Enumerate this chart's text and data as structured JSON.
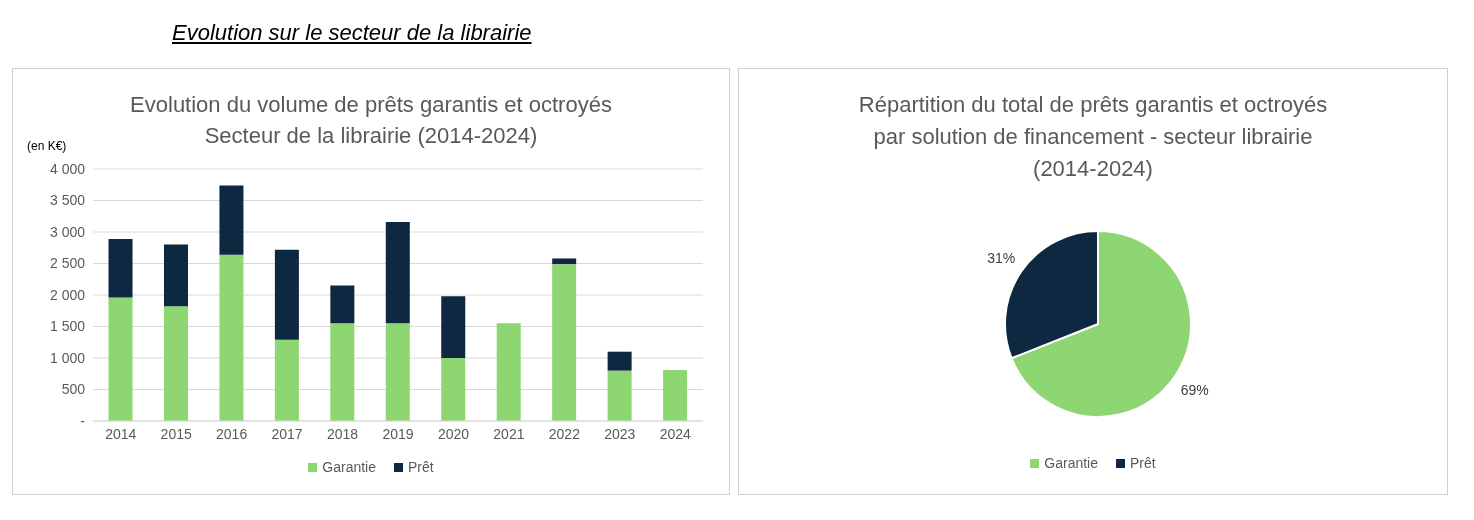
{
  "chart_data": [
    {
      "type": "bar",
      "title": "Evolution du volume de prêts garantis et octroyés",
      "subtitle": "Secteur de la librairie (2014-2024)",
      "ylabel": "(en K€)",
      "annotations": [
        "Evolution sur le secteur de la librairie"
      ],
      "stacked": true,
      "categories": [
        "2014",
        "2015",
        "2016",
        "2017",
        "2018",
        "2019",
        "2020",
        "2021",
        "2022",
        "2023",
        "2024"
      ],
      "series": [
        {
          "name": "Garantie",
          "color": "#8ed672",
          "values": [
            1960,
            1820,
            2640,
            1290,
            1550,
            1550,
            1000,
            1550,
            2490,
            800,
            810
          ]
        },
        {
          "name": "Prêt",
          "color": "#0e2841",
          "values": [
            930,
            980,
            1100,
            1430,
            600,
            1610,
            980,
            0,
            90,
            300,
            0
          ]
        }
      ],
      "ylim": [
        0,
        4000
      ],
      "yticks": [
        {
          "value": 0,
          "label": "-"
        },
        500,
        {
          "value": 1000,
          "label": "1 000"
        },
        {
          "value": 1500,
          "label": "1 500"
        },
        {
          "value": 2000,
          "label": "2 000"
        },
        {
          "value": 2500,
          "label": "2 500"
        },
        {
          "value": 3000,
          "label": "3 000"
        },
        {
          "value": 3500,
          "label": "3 500"
        },
        {
          "value": 4000,
          "label": "4 000"
        }
      ],
      "grid": "y",
      "legend": "bottom"
    },
    {
      "type": "pie",
      "title": "Répartition du total de prêts garantis et octroyés\npar solution de financement - secteur librairie\n(2014-2024)",
      "categories": [
        "Garantie",
        "Prêt"
      ],
      "values": [
        69,
        31
      ],
      "colors": [
        "#8ed672",
        "#0e2841"
      ],
      "value_labels": [
        "69%",
        "31%"
      ],
      "legend": "bottom"
    }
  ]
}
